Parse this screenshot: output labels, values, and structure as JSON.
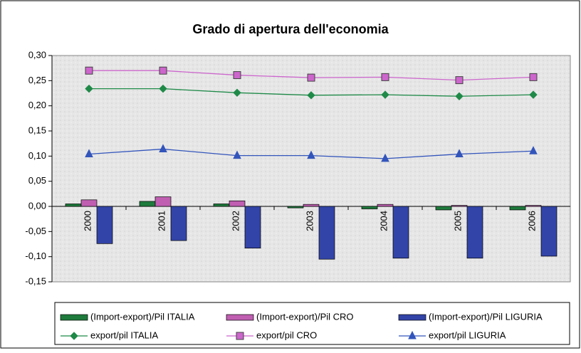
{
  "chart_data": {
    "type": "bar",
    "title": "Grado di apertura dell'economia",
    "categories": [
      "2000",
      "2001",
      "2002",
      "2003",
      "2004",
      "2005",
      "2006"
    ],
    "series": [
      {
        "name": "(Import-export)/Pil ITALIA",
        "type": "bar",
        "color": "#1e7b3c",
        "values": [
          0.005,
          0.01,
          0.005,
          -0.003,
          -0.005,
          -0.007,
          -0.007
        ]
      },
      {
        "name": "(Import-export)/Pil CRO",
        "type": "bar",
        "color": "#c05fb2",
        "values": [
          0.013,
          0.019,
          0.011,
          0.004,
          0.004,
          0.002,
          0.002
        ]
      },
      {
        "name": "(Import-export)/Pil LIGURIA",
        "type": "bar",
        "color": "#3344a8",
        "values": [
          -0.074,
          -0.068,
          -0.083,
          -0.105,
          -0.103,
          -0.103,
          -0.099
        ]
      },
      {
        "name": "export/pil ITALIA",
        "type": "line",
        "marker": "diamond",
        "color": "#1f8a48",
        "values": [
          0.234,
          0.234,
          0.226,
          0.221,
          0.222,
          0.219,
          0.222
        ]
      },
      {
        "name": "export/pil CRO",
        "type": "line",
        "marker": "square",
        "color": "#cc66cc",
        "values": [
          0.27,
          0.27,
          0.261,
          0.256,
          0.257,
          0.251,
          0.257
        ]
      },
      {
        "name": "export/pil LIGURIA",
        "type": "line",
        "marker": "triangle",
        "color": "#3355bb",
        "values": [
          0.104,
          0.114,
          0.101,
          0.101,
          0.095,
          0.104,
          0.11
        ]
      }
    ],
    "ylim": [
      -0.15,
      0.3
    ],
    "yticks": [
      {
        "value": -0.15,
        "label": "-0,15"
      },
      {
        "value": -0.1,
        "label": "-0,10"
      },
      {
        "value": -0.05,
        "label": "-0,05"
      },
      {
        "value": 0,
        "label": "0,00"
      },
      {
        "value": 0.05,
        "label": "0,05"
      },
      {
        "value": 0.1,
        "label": "0,10"
      },
      {
        "value": 0.15,
        "label": "0,15"
      },
      {
        "value": 0.2,
        "label": "0,20"
      },
      {
        "value": 0.25,
        "label": "0,25"
      },
      {
        "value": 0.3,
        "label": "0,30"
      }
    ],
    "grid": false,
    "legend": "bottom"
  }
}
